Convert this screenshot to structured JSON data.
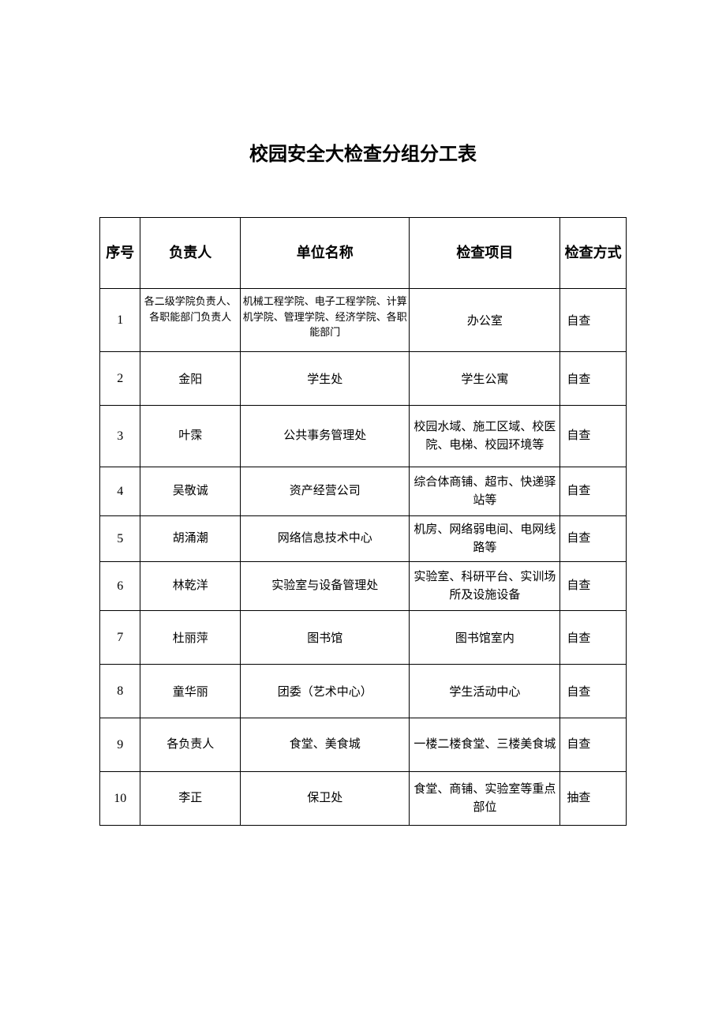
{
  "title": "校园安全大检查分组分工表",
  "table": {
    "headers": {
      "seq": "序号",
      "person": "负责人",
      "unit": "单位名称",
      "item": "检查项目",
      "method": "检查方式"
    },
    "rows": [
      {
        "seq": "1",
        "person": "各二级学院负责人、各职能部门负责人",
        "unit": "机械工程学院、电子工程学院、计算机学院、管理学院、经济学院、各职能部门",
        "item": "办公室",
        "method": "自查"
      },
      {
        "seq": "2",
        "person": "金阳",
        "unit": "学生处",
        "item": "学生公寓",
        "method": "自查"
      },
      {
        "seq": "3",
        "person": "叶霂",
        "unit": "公共事务管理处",
        "item": "校园水域、施工区域、校医院、电梯、校园环境等",
        "method": "自查"
      },
      {
        "seq": "4",
        "person": "吴敬诚",
        "unit": "资产经营公司",
        "item": "综合体商铺、超市、快递驿站等",
        "method": "自查"
      },
      {
        "seq": "5",
        "person": "胡涌潮",
        "unit": "网络信息技术中心",
        "item": "机房、网络弱电间、电网线路等",
        "method": "自查"
      },
      {
        "seq": "6",
        "person": "林乾洋",
        "unit": "实验室与设备管理处",
        "item": "实验室、科研平台、实训场所及设施设备",
        "method": "自查"
      },
      {
        "seq": "7",
        "person": "杜丽萍",
        "unit": "图书馆",
        "item": "图书馆室内",
        "method": "自查"
      },
      {
        "seq": "8",
        "person": "童华丽",
        "unit": "团委（艺术中心）",
        "item": "学生活动中心",
        "method": "自查"
      },
      {
        "seq": "9",
        "person": "各负责人",
        "unit": "食堂、美食城",
        "item": "一楼二楼食堂、三楼美食城",
        "method": "自查"
      },
      {
        "seq": "10",
        "person": "李正",
        "unit": "保卫处",
        "item": "食堂、商铺、实验室等重点部位",
        "method": "抽查"
      }
    ]
  }
}
